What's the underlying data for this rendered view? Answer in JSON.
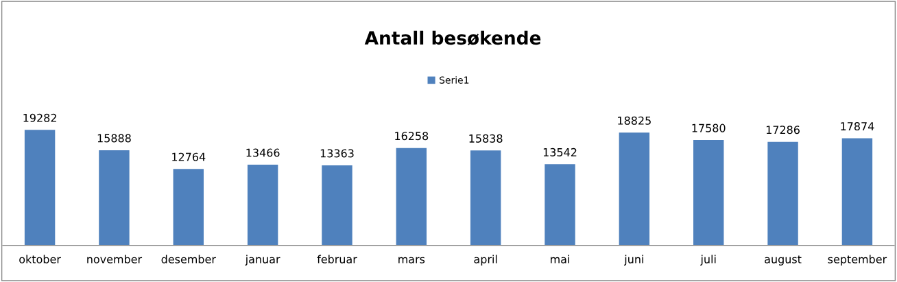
{
  "chart_data": {
    "type": "bar",
    "title": "Antall besøkende",
    "categories": [
      "oktober",
      "november",
      "desember",
      "januar",
      "februar",
      "mars",
      "april",
      "mai",
      "juni",
      "juli",
      "august",
      "september"
    ],
    "series": [
      {
        "name": "Serie1",
        "color": "#4f81bd",
        "values": [
          19282,
          15888,
          12764,
          13466,
          13363,
          16258,
          15838,
          13542,
          18825,
          17580,
          17286,
          17874
        ]
      }
    ],
    "data_labels": true,
    "legend": "top",
    "grid": false,
    "tick_labels": "x"
  }
}
